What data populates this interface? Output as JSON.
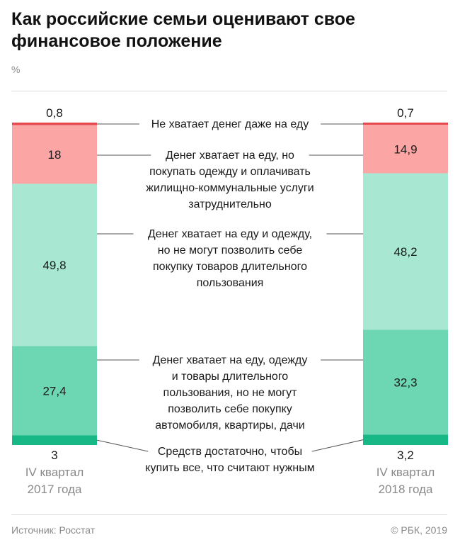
{
  "header": {
    "title": "Как российские семьи оценивают свое финансовое положение",
    "unit": "%"
  },
  "footer": {
    "source": "Источник: Росстат",
    "copyright": "© РБК, 2019"
  },
  "colors": {
    "level1": "#e5484d",
    "level2": "#fca5a5",
    "level3": "#a8e8d2",
    "level4": "#6dd6b3",
    "level5": "#17b886"
  },
  "chart_data": {
    "type": "bar",
    "stacked": true,
    "categories": [
      "IV квартал 2017 года",
      "IV квартал 2018 года"
    ],
    "category_lines": [
      [
        "IV квартал",
        "2017 года"
      ],
      [
        "IV квартал",
        "2018 года"
      ]
    ],
    "series": [
      {
        "name": "Не хватает денег даже на еду",
        "lines": [
          "Не хватает денег даже на еду"
        ],
        "values": [
          0.8,
          0.7
        ],
        "labels": [
          "0,8",
          "0,7"
        ],
        "color": "#e5484d"
      },
      {
        "name": "Денег хватает на еду, но покупать одежду и оплачивать жилищно-коммунальные услуги затруднительно",
        "lines": [
          "Денег хватает на еду, но",
          "покупать одежду и оплачивать",
          "жилищно-коммунальные услуги",
          "затруднительно"
        ],
        "values": [
          18,
          14.9
        ],
        "labels": [
          "18",
          "14,9"
        ],
        "color": "#fca5a5"
      },
      {
        "name": "Денег хватает на еду и одежду, но не могут позволить себе покупку товаров длительного пользования",
        "lines": [
          "Денег хватает на еду и одежду,",
          "но не могут позволить себе",
          "покупку товаров длительного",
          "пользования"
        ],
        "values": [
          49.8,
          48.2
        ],
        "labels": [
          "49,8",
          "48,2"
        ],
        "color": "#a8e8d2"
      },
      {
        "name": "Денег хватает на еду, одежду и товары длительного пользования, но не могут позволить себе покупку автомобиля, квартиры, дачи",
        "lines": [
          "Денег хватает на еду, одежду",
          "и товары длительного",
          "пользования, но не могут",
          "позволить себе покупку",
          "автомобиля, квартиры, дачи"
        ],
        "values": [
          27.4,
          32.3
        ],
        "labels": [
          "27,4",
          "32,3"
        ],
        "color": "#6dd6b3"
      },
      {
        "name": "Средств достаточно, чтобы купить все, что считают нужным",
        "lines": [
          "Средств достаточно, чтобы",
          "купить все, что считают нужным"
        ],
        "values": [
          3,
          3.2
        ],
        "labels": [
          "3",
          "3,2"
        ],
        "color": "#17b886"
      }
    ]
  }
}
